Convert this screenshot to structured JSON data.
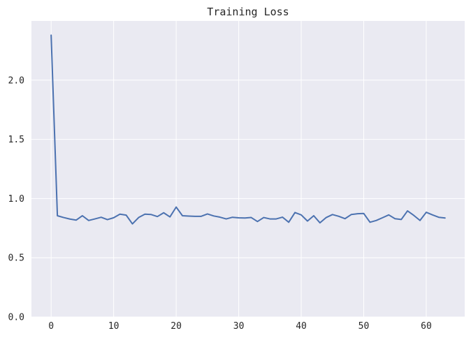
{
  "chart_data": {
    "type": "line",
    "title": "Training Loss",
    "xlabel": "",
    "ylabel": "",
    "xlim": [
      -3.15,
      66.15
    ],
    "ylim": [
      0,
      2.5
    ],
    "xticks": [
      0,
      10,
      20,
      30,
      40,
      50,
      60
    ],
    "yticks": [
      0.0,
      0.5,
      1.0,
      1.5,
      2.0
    ],
    "xtick_labels": [
      "0",
      "10",
      "20",
      "30",
      "40",
      "50",
      "60"
    ],
    "ytick_labels": [
      "0.0",
      "0.5",
      "1.0",
      "1.5",
      "2.0"
    ],
    "grid": true,
    "series": [
      {
        "color": "#4c72b0",
        "x": [
          0,
          1,
          2,
          3,
          4,
          5,
          6,
          7,
          8,
          9,
          10,
          11,
          12,
          13,
          14,
          15,
          16,
          17,
          18,
          19,
          20,
          21,
          22,
          23,
          24,
          25,
          26,
          27,
          28,
          29,
          30,
          31,
          32,
          33,
          34,
          35,
          36,
          37,
          38,
          39,
          40,
          41,
          42,
          43,
          44,
          45,
          46,
          47,
          48,
          49,
          50,
          51,
          52,
          53,
          54,
          55,
          56,
          57,
          58,
          59,
          60,
          61,
          62,
          63
        ],
        "values": [
          2.38,
          0.855,
          0.84,
          0.827,
          0.818,
          0.855,
          0.815,
          0.828,
          0.842,
          0.822,
          0.838,
          0.868,
          0.86,
          0.786,
          0.84,
          0.868,
          0.865,
          0.848,
          0.88,
          0.845,
          0.928,
          0.855,
          0.852,
          0.85,
          0.85,
          0.87,
          0.853,
          0.843,
          0.828,
          0.842,
          0.837,
          0.836,
          0.84,
          0.806,
          0.84,
          0.828,
          0.828,
          0.843,
          0.8,
          0.882,
          0.862,
          0.81,
          0.855,
          0.795,
          0.84,
          0.865,
          0.85,
          0.83,
          0.865,
          0.872,
          0.874,
          0.8,
          0.815,
          0.838,
          0.862,
          0.83,
          0.823,
          0.896,
          0.858,
          0.815,
          0.884,
          0.862,
          0.842,
          0.836
        ]
      }
    ],
    "colors": {
      "plot_background": "#eaeaf2",
      "grid": "#ffffff",
      "line": "#4c72b0",
      "text": "#262626"
    }
  }
}
